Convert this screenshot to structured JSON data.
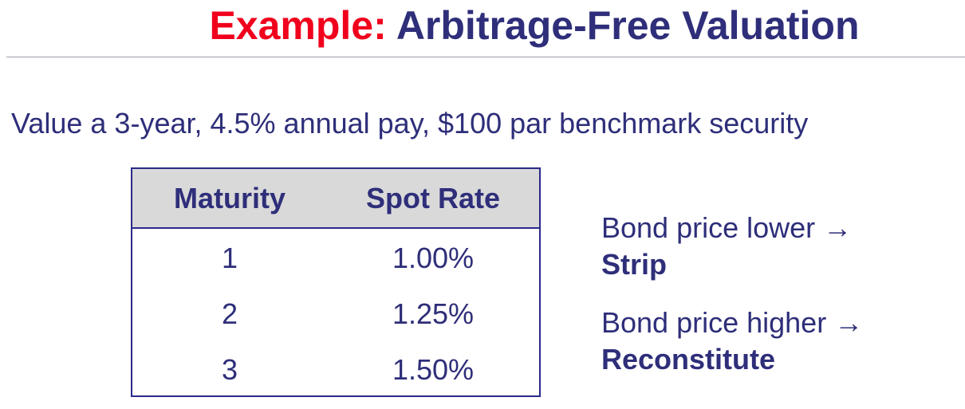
{
  "title": {
    "lead": "Example:",
    "rest": "Arbitrage-Free Valuation"
  },
  "subtitle": "Value a 3-year, 4.5% annual pay, $100 par benchmark security",
  "table": {
    "headers": [
      "Maturity",
      "Spot Rate"
    ],
    "rows": [
      [
        "1",
        "1.00%"
      ],
      [
        "2",
        "1.25%"
      ],
      [
        "3",
        "1.50%"
      ]
    ]
  },
  "notes": [
    {
      "condition": "Bond price lower →",
      "action": "Strip"
    },
    {
      "condition": "Bond price higher →",
      "action": "Reconstitute"
    }
  ],
  "colors": {
    "title_lead": "#f0001c",
    "text": "#2e2e7a",
    "table_border": "#2a2a8a",
    "header_fill": "#d9d9d9"
  }
}
